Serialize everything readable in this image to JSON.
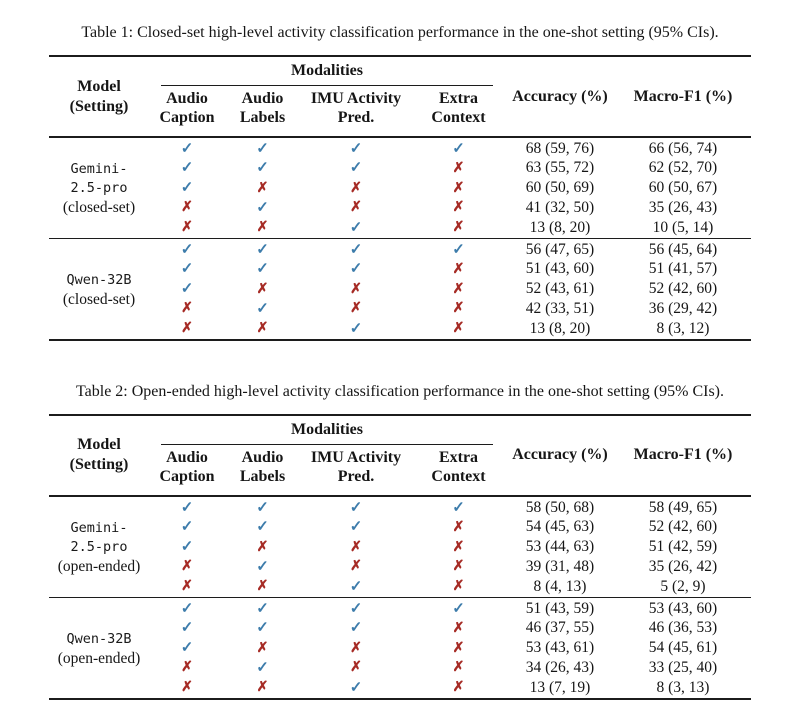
{
  "glyphs": {
    "check": "✓",
    "cross": "✗"
  },
  "colors": {
    "check": "#3d7cab",
    "cross": "#a62b25",
    "rule": "#1c1c1c"
  },
  "tables": [
    {
      "caption": "Table 1: Closed-set high-level activity classification performance in the one-shot setting (95% CIs).",
      "header": {
        "model_line1": "Model",
        "model_line2": "(Setting)",
        "modalities": "Modalities",
        "subcols": [
          {
            "l1": "Audio",
            "l2": "Caption"
          },
          {
            "l1": "Audio",
            "l2": "Labels"
          },
          {
            "l1": "IMU Activity",
            "l2": "Pred."
          },
          {
            "l1": "Extra",
            "l2": "Context"
          }
        ],
        "accuracy": "Accuracy (%)",
        "macro_f1": "Macro-F1 (%)"
      },
      "sections": [
        {
          "model_lines": [
            "Gemini-",
            "2.5-pro"
          ],
          "setting": "(closed-set)",
          "rows": [
            {
              "marks": [
                true,
                true,
                true,
                true
              ],
              "accuracy": "68 (59, 76)",
              "macro_f1": "66 (56, 74)"
            },
            {
              "marks": [
                true,
                true,
                true,
                false
              ],
              "accuracy": "63 (55, 72)",
              "macro_f1": "62 (52, 70)"
            },
            {
              "marks": [
                true,
                false,
                false,
                false
              ],
              "accuracy": "60 (50, 69)",
              "macro_f1": "60 (50, 67)"
            },
            {
              "marks": [
                false,
                true,
                false,
                false
              ],
              "accuracy": "41 (32, 50)",
              "macro_f1": "35 (26, 43)"
            },
            {
              "marks": [
                false,
                false,
                true,
                false
              ],
              "accuracy": "13 (8, 20)",
              "macro_f1": "10 (5, 14)"
            }
          ]
        },
        {
          "model_lines": [
            "Qwen-32B"
          ],
          "setting": "(closed-set)",
          "rows": [
            {
              "marks": [
                true,
                true,
                true,
                true
              ],
              "accuracy": "56 (47, 65)",
              "macro_f1": "56 (45, 64)"
            },
            {
              "marks": [
                true,
                true,
                true,
                false
              ],
              "accuracy": "51 (43, 60)",
              "macro_f1": "51 (41, 57)"
            },
            {
              "marks": [
                true,
                false,
                false,
                false
              ],
              "accuracy": "52 (43, 61)",
              "macro_f1": "52 (42, 60)"
            },
            {
              "marks": [
                false,
                true,
                false,
                false
              ],
              "accuracy": "42 (33, 51)",
              "macro_f1": "36 (29, 42)"
            },
            {
              "marks": [
                false,
                false,
                true,
                false
              ],
              "accuracy": "13 (8, 20)",
              "macro_f1": "8 (3, 12)"
            }
          ]
        }
      ]
    },
    {
      "caption": "Table 2: Open-ended high-level activity classification performance in the one-shot setting (95% CIs).",
      "header": {
        "model_line1": "Model",
        "model_line2": "(Setting)",
        "modalities": "Modalities",
        "subcols": [
          {
            "l1": "Audio",
            "l2": "Caption"
          },
          {
            "l1": "Audio",
            "l2": "Labels"
          },
          {
            "l1": "IMU Activity",
            "l2": "Pred."
          },
          {
            "l1": "Extra",
            "l2": "Context"
          }
        ],
        "accuracy": "Accuracy (%)",
        "macro_f1": "Macro-F1 (%)"
      },
      "sections": [
        {
          "model_lines": [
            "Gemini-",
            "2.5-pro"
          ],
          "setting": "(open-ended)",
          "rows": [
            {
              "marks": [
                true,
                true,
                true,
                true
              ],
              "accuracy": "58 (50, 68)",
              "macro_f1": "58 (49, 65)"
            },
            {
              "marks": [
                true,
                true,
                true,
                false
              ],
              "accuracy": "54 (45, 63)",
              "macro_f1": "52 (42, 60)"
            },
            {
              "marks": [
                true,
                false,
                false,
                false
              ],
              "accuracy": "53 (44, 63)",
              "macro_f1": "51 (42, 59)"
            },
            {
              "marks": [
                false,
                true,
                false,
                false
              ],
              "accuracy": "39 (31, 48)",
              "macro_f1": "35 (26, 42)"
            },
            {
              "marks": [
                false,
                false,
                true,
                false
              ],
              "accuracy": "8 (4, 13)",
              "macro_f1": "5 (2, 9)"
            }
          ]
        },
        {
          "model_lines": [
            "Qwen-32B"
          ],
          "setting": "(open-ended)",
          "rows": [
            {
              "marks": [
                true,
                true,
                true,
                true
              ],
              "accuracy": "51 (43, 59)",
              "macro_f1": "53 (43, 60)"
            },
            {
              "marks": [
                true,
                true,
                true,
                false
              ],
              "accuracy": "46 (37, 55)",
              "macro_f1": "46 (36, 53)"
            },
            {
              "marks": [
                true,
                false,
                false,
                false
              ],
              "accuracy": "53 (43, 61)",
              "macro_f1": "54 (45, 61)"
            },
            {
              "marks": [
                false,
                true,
                false,
                false
              ],
              "accuracy": "34 (26, 43)",
              "macro_f1": "33 (25, 40)"
            },
            {
              "marks": [
                false,
                false,
                true,
                false
              ],
              "accuracy": "13 (7, 19)",
              "macro_f1": "8 (3, 13)"
            }
          ]
        }
      ]
    }
  ]
}
